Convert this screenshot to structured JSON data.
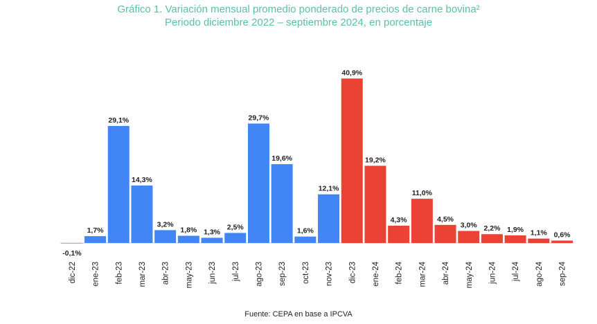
{
  "title": "Gráfico 1. Variación mensual promedio ponderado de precios de carne bovina²",
  "subtitle": "Periodo diciembre 2022 – septiembre 2024, en porcentaje",
  "source": "Fuente: CEPA en base a IPCVA",
  "colors": {
    "series_2023": "#4285f4",
    "series_2024": "#ea4335",
    "title": "#5bc0a6"
  },
  "chart_data": {
    "type": "bar",
    "categories": [
      "dic-22",
      "ene-23",
      "feb-23",
      "mar-23",
      "abr-23",
      "may-23",
      "jun-23",
      "jul-23",
      "ago-23",
      "sep-23",
      "oct-23",
      "nov-23",
      "dic-23",
      "ene-24",
      "feb-24",
      "mar-24",
      "abr-24",
      "may-24",
      "jun-24",
      "jul-24",
      "ago-24",
      "sep-24"
    ],
    "values": [
      -0.1,
      1.7,
      29.1,
      14.3,
      3.2,
      1.8,
      1.3,
      2.5,
      29.7,
      19.6,
      1.6,
      12.1,
      40.9,
      19.2,
      4.3,
      11.0,
      4.5,
      3.0,
      2.2,
      1.9,
      1.1,
      0.6
    ],
    "value_labels": [
      "-0,1%",
      "1,7%",
      "29,1%",
      "14,3%",
      "3,2%",
      "1,8%",
      "1,3%",
      "2,5%",
      "29,7%",
      "19,6%",
      "1,6%",
      "12,1%",
      "40,9%",
      "19,2%",
      "4,3%",
      "11,0%",
      "4,5%",
      "3,0%",
      "2,2%",
      "1,9%",
      "1,1%",
      "0,6%"
    ],
    "bar_colors": [
      "#4285f4",
      "#4285f4",
      "#4285f4",
      "#4285f4",
      "#4285f4",
      "#4285f4",
      "#4285f4",
      "#4285f4",
      "#4285f4",
      "#4285f4",
      "#4285f4",
      "#4285f4",
      "#ea4335",
      "#ea4335",
      "#ea4335",
      "#ea4335",
      "#ea4335",
      "#ea4335",
      "#ea4335",
      "#ea4335",
      "#ea4335",
      "#ea4335"
    ],
    "ylim": [
      -1,
      42
    ],
    "grid": false,
    "legend": "none",
    "xlabel": "",
    "ylabel": ""
  }
}
